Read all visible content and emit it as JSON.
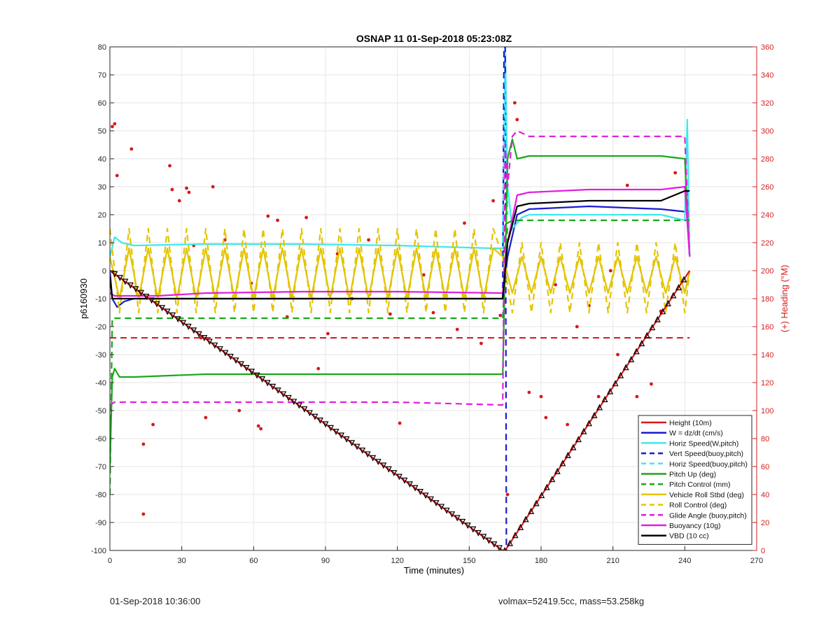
{
  "chart_data": {
    "type": "line",
    "title": "OSNAP 11 01-Sep-2018 05:23:08Z",
    "xlabel": "Time (minutes)",
    "ylabel": "p6160930",
    "ylabel_right": "(+) Heading (°M)",
    "xlim": [
      0,
      270
    ],
    "ylim": [
      -100,
      80
    ],
    "ylim_right": [
      0,
      360
    ],
    "xticks": [
      0,
      30,
      60,
      90,
      120,
      150,
      180,
      210,
      240,
      270
    ],
    "yticks": [
      -100,
      -90,
      -80,
      -70,
      -60,
      -50,
      -40,
      -30,
      -20,
      -10,
      0,
      10,
      20,
      30,
      40,
      50,
      60,
      70,
      80
    ],
    "yticks_right": [
      0,
      20,
      40,
      60,
      80,
      100,
      120,
      140,
      160,
      180,
      200,
      220,
      240,
      260,
      280,
      300,
      320,
      340,
      360
    ],
    "grid": true,
    "legend_position": "bottom-right",
    "colors": {
      "red": "#d7191c",
      "blue": "#1a1ad0",
      "cyan": "#3ee8ee",
      "green": "#1aa81a",
      "yellow": "#e3c400",
      "magenta": "#e01fe0",
      "black": "#000000",
      "heading_axis": "#d21f1f"
    },
    "series": [
      {
        "name": "Height (10m)",
        "color": "red",
        "dash": "solid",
        "x": [
          0,
          164,
          165,
          242
        ],
        "y": [
          0,
          -100,
          -100,
          0
        ]
      },
      {
        "name": "W = dz/dt (cm/s)",
        "color": "blue",
        "dash": "solid",
        "x": [
          0,
          1,
          3,
          6,
          10,
          20,
          40,
          80,
          120,
          164,
          166,
          170,
          175,
          200,
          230,
          241,
          242
        ],
        "y": [
          0,
          -10,
          -13,
          -11,
          -10,
          -10,
          -10,
          -10,
          -10,
          -10,
          5,
          20,
          22,
          23,
          22,
          21,
          5
        ]
      },
      {
        "name": "Horiz Speed(W,pitch)",
        "color": "cyan",
        "dash": "solid",
        "x": [
          0,
          2,
          5,
          10,
          40,
          80,
          120,
          160,
          164,
          165,
          166,
          168,
          172,
          175,
          200,
          230,
          240,
          241,
          242
        ],
        "y": [
          5,
          12,
          10,
          9,
          9.5,
          9.5,
          9,
          8,
          8,
          80,
          30,
          15,
          19,
          20,
          20,
          20,
          18,
          54,
          5
        ]
      },
      {
        "name": "Vert Speed(buoy,pitch)",
        "color": "blue",
        "dash": "dashed",
        "x": [
          164,
          164.5,
          165,
          165.5,
          166
        ],
        "y": [
          -10,
          80,
          80,
          -100,
          -100
        ]
      },
      {
        "name": "Horiz Speed(buoy,pitch)",
        "color": "cyan",
        "dash": "dashed",
        "x": [
          164,
          165,
          166
        ],
        "y": [
          10,
          70,
          20
        ]
      },
      {
        "name": "Pitch Up (deg)",
        "color": "green",
        "dash": "solid",
        "x": [
          0,
          1,
          2,
          4,
          10,
          40,
          80,
          120,
          164,
          166,
          168,
          170,
          175,
          200,
          230,
          240,
          242
        ],
        "y": [
          -70,
          -38,
          -35,
          -38,
          -38,
          -37,
          -37,
          -37,
          -37,
          40,
          47,
          40,
          41,
          41,
          41,
          40,
          5
        ]
      },
      {
        "name": "Pitch Control (mm)",
        "color": "green",
        "dash": "dashed",
        "x": [
          0,
          1,
          2,
          164,
          166,
          168,
          242
        ],
        "y": [
          -80,
          -17,
          -17,
          -17,
          17,
          18,
          18
        ]
      },
      {
        "name": "Vehicle Roll Stbd (deg)",
        "color": "yellow",
        "dash": "solid",
        "x": [
          0,
          4,
          8,
          12,
          16,
          20,
          24,
          28,
          32,
          36,
          40,
          44,
          48,
          52,
          56,
          60,
          64,
          68,
          72,
          76,
          80,
          84,
          88,
          92,
          96,
          100,
          104,
          108,
          112,
          116,
          120,
          124,
          128,
          132,
          136,
          140,
          144,
          148,
          152,
          156,
          160,
          164,
          168,
          172,
          176,
          180,
          184,
          188,
          192,
          196,
          200,
          204,
          208,
          212,
          216,
          220,
          224,
          228,
          232,
          236,
          240,
          242
        ],
        "y": [
          5,
          -10,
          8,
          -10,
          8,
          -10,
          8,
          -10,
          8,
          -10,
          8,
          -10,
          8,
          -10,
          8,
          -10,
          8,
          -10,
          8,
          -10,
          8,
          -10,
          8,
          -10,
          8,
          -10,
          8,
          -10,
          8,
          -10,
          8,
          -10,
          8,
          -10,
          8,
          -10,
          8,
          -10,
          8,
          -10,
          8,
          5,
          -8,
          5,
          -8,
          5,
          -8,
          5,
          -8,
          5,
          -8,
          5,
          -8,
          5,
          -8,
          5,
          -8,
          5,
          -8,
          5,
          -8,
          0
        ]
      },
      {
        "name": "Roll Control (deg)",
        "color": "yellow",
        "dash": "dashed",
        "x": [
          0,
          4,
          8,
          12,
          16,
          20,
          24,
          28,
          32,
          36,
          40,
          44,
          48,
          52,
          56,
          60,
          64,
          68,
          72,
          76,
          80,
          84,
          88,
          92,
          96,
          100,
          104,
          108,
          112,
          116,
          120,
          124,
          128,
          132,
          136,
          140,
          144,
          148,
          152,
          156,
          160,
          164,
          168,
          172,
          176,
          180,
          184,
          188,
          192,
          196,
          200,
          204,
          208,
          212,
          216,
          220,
          224,
          228,
          232,
          236,
          240,
          242
        ],
        "y": [
          15,
          -15,
          15,
          -15,
          15,
          -15,
          15,
          -15,
          15,
          -15,
          15,
          -15,
          15,
          -15,
          15,
          -15,
          15,
          -15,
          15,
          -15,
          15,
          -15,
          15,
          -15,
          15,
          -15,
          15,
          -15,
          15,
          -15,
          15,
          -15,
          15,
          -15,
          15,
          -15,
          15,
          -15,
          15,
          -15,
          15,
          5,
          -15,
          10,
          -15,
          10,
          -15,
          10,
          -15,
          10,
          -15,
          10,
          -15,
          10,
          -15,
          10,
          -15,
          10,
          -15,
          10,
          -15,
          0
        ]
      },
      {
        "name": "Glide Angle (buoy,pitch)",
        "color": "magenta",
        "dash": "dashed",
        "x": [
          0,
          2,
          4,
          40,
          80,
          120,
          164,
          165,
          166,
          168,
          170,
          175,
          200,
          230,
          240,
          242
        ],
        "y": [
          -48,
          -47,
          -47,
          -47,
          -47,
          -47,
          -48,
          45,
          30,
          48,
          50,
          48,
          48,
          48,
          48,
          5
        ]
      },
      {
        "name": "Buoyancy (10g)",
        "color": "magenta",
        "dash": "solid",
        "x": [
          0,
          2,
          20,
          40,
          80,
          120,
          164,
          166,
          170,
          175,
          200,
          230,
          240,
          242
        ],
        "y": [
          -8,
          -9,
          -9,
          -8,
          -7.5,
          -7.5,
          -8,
          10,
          27,
          28,
          29,
          29,
          30,
          5
        ]
      },
      {
        "name": "VBD (10 cc)",
        "color": "black",
        "dash": "solid",
        "x": [
          0,
          1,
          2,
          20,
          80,
          120,
          164,
          166,
          170,
          175,
          200,
          230,
          240,
          242
        ],
        "y": [
          -2,
          -10,
          -10,
          -10,
          -10,
          -10,
          -10,
          10,
          23,
          24,
          25,
          25,
          28.5,
          28.5
        ]
      }
    ],
    "heading_reference": {
      "y_right": 152,
      "color": "red",
      "dash": "dashed"
    },
    "heading_samples": [
      [
        1,
        303
      ],
      [
        2,
        305
      ],
      [
        3,
        268
      ],
      [
        9,
        287
      ],
      [
        14,
        76
      ],
      [
        14,
        26
      ],
      [
        18,
        90
      ],
      [
        25,
        275
      ],
      [
        26,
        258
      ],
      [
        29,
        250
      ],
      [
        32,
        259
      ],
      [
        33,
        256
      ],
      [
        35,
        218
      ],
      [
        38,
        152
      ],
      [
        40,
        95
      ],
      [
        43,
        260
      ],
      [
        48,
        222
      ],
      [
        54,
        100
      ],
      [
        59,
        191
      ],
      [
        62,
        89
      ],
      [
        63,
        87
      ],
      [
        66,
        239
      ],
      [
        70,
        236
      ],
      [
        74,
        167
      ],
      [
        82,
        238
      ],
      [
        87,
        130
      ],
      [
        91,
        155
      ],
      [
        95,
        212
      ],
      [
        101,
        180
      ],
      [
        108,
        222
      ],
      [
        117,
        169
      ],
      [
        121,
        91
      ],
      [
        131,
        197
      ],
      [
        135,
        170
      ],
      [
        145,
        158
      ],
      [
        148,
        234
      ],
      [
        155,
        148
      ],
      [
        160,
        250
      ],
      [
        163,
        168
      ],
      [
        166,
        40
      ],
      [
        169,
        320
      ],
      [
        170,
        308
      ],
      [
        175,
        113
      ],
      [
        180,
        110
      ],
      [
        182,
        95
      ],
      [
        186,
        190
      ],
      [
        191,
        90
      ],
      [
        195,
        160
      ],
      [
        200,
        175
      ],
      [
        204,
        110
      ],
      [
        209,
        200
      ],
      [
        212,
        140
      ],
      [
        216,
        261
      ],
      [
        220,
        110
      ],
      [
        226,
        119
      ],
      [
        230,
        171
      ],
      [
        236,
        270
      ],
      [
        241,
        250
      ]
    ],
    "legend": [
      {
        "label": "Height (10m)",
        "color": "red",
        "dash": "solid"
      },
      {
        "label": "W = dz/dt (cm/s)",
        "color": "blue",
        "dash": "solid"
      },
      {
        "label": "Horiz Speed(W,pitch)",
        "color": "cyan",
        "dash": "solid"
      },
      {
        "label": "Vert Speed(buoy,pitch)",
        "color": "blue",
        "dash": "dashed"
      },
      {
        "label": "Horiz Speed(buoy,pitch)",
        "color": "cyan",
        "dash": "dashed"
      },
      {
        "label": "Pitch Up (deg)",
        "color": "green",
        "dash": "solid"
      },
      {
        "label": "Pitch Control (mm)",
        "color": "green",
        "dash": "dashed"
      },
      {
        "label": "Vehicle Roll Stbd (deg)",
        "color": "yellow",
        "dash": "solid"
      },
      {
        "label": "Roll Control (deg)",
        "color": "yellow",
        "dash": "dashed"
      },
      {
        "label": "Glide Angle (buoy,pitch)",
        "color": "magenta",
        "dash": "dashed"
      },
      {
        "label": "Buoyancy (10g)",
        "color": "magenta",
        "dash": "solid"
      },
      {
        "label": "VBD (10 cc)",
        "color": "black",
        "dash": "solid"
      }
    ]
  },
  "footer": {
    "timestamp": "01-Sep-2018 10:36:00",
    "summary": "volmax=52419.5cc, mass=53.258kg"
  }
}
